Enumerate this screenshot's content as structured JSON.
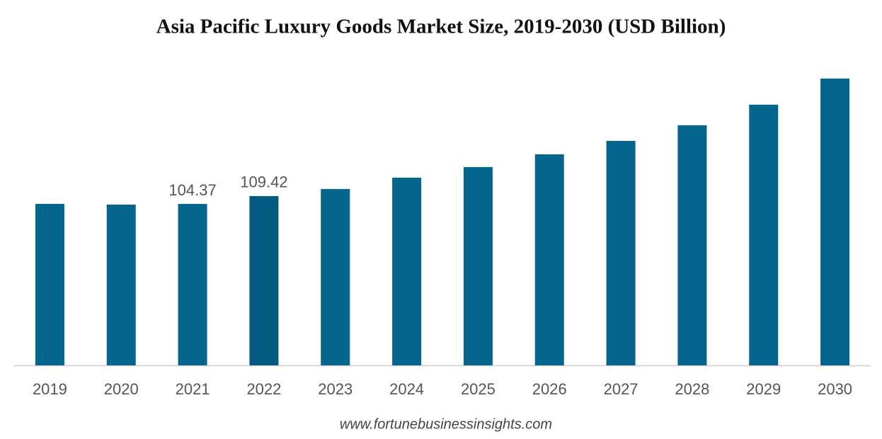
{
  "chart_data": {
    "type": "bar",
    "title": "Asia Pacific Luxury Goods Market Size, 2019-2030 (USD Billion)",
    "source": "www.fortunebusinessinsights.com",
    "categories": [
      "2019",
      "2020",
      "2021",
      "2022",
      "2023",
      "2024",
      "2025",
      "2026",
      "2027",
      "2028",
      "2029",
      "2030"
    ],
    "values": [
      104.4,
      103.9,
      104.37,
      109.42,
      114.0,
      121.3,
      128.2,
      136.4,
      145.1,
      155.2,
      168.5,
      185.4
    ],
    "value_labels": [
      null,
      null,
      "104.37",
      "109.42",
      null,
      null,
      null,
      null,
      null,
      null,
      null,
      null
    ],
    "colors": [
      "#05668d",
      "#05668d",
      "#05668d",
      "#035a80",
      "#05668d",
      "#05668d",
      "#05668d",
      "#05668d",
      "#05668d",
      "#05668d",
      "#05668d",
      "#05668d"
    ],
    "ylim": [
      0,
      200
    ]
  }
}
